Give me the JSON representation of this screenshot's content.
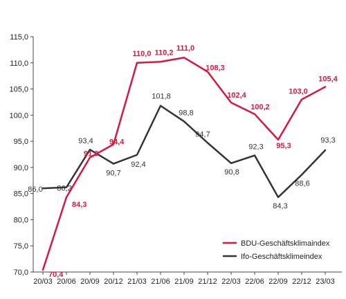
{
  "chart_data": {
    "type": "line",
    "title": "",
    "xlabel": "",
    "ylabel": "",
    "categories": [
      "20/03",
      "20/06",
      "20/09",
      "20/12",
      "21/03",
      "21/06",
      "21/09",
      "21/12",
      "22/03",
      "22/06",
      "22/09",
      "22/12",
      "23/03"
    ],
    "ylim": [
      70,
      115
    ],
    "yticks": [
      "70,0",
      "75,0",
      "80,0",
      "85,0",
      "90,0",
      "95,0",
      "100,0",
      "105,0",
      "110,0",
      "115,0"
    ],
    "grid": false,
    "legend_position": "bottom-right",
    "series": [
      {
        "name": "BDU-Geschäftsklimaindex",
        "color": "#d6173f",
        "values": [
          70.4,
          84.3,
          91.9,
          94.4,
          110.0,
          110.2,
          111.0,
          108.3,
          102.4,
          100.2,
          95.3,
          103.0,
          105.4
        ],
        "labels": [
          "70,4",
          "84,3",
          "91,9",
          "94,4",
          "110,0",
          "110,2",
          "111,0",
          "108,3",
          "102,4",
          "100,2",
          "95,3",
          "103,0",
          "105,4"
        ]
      },
      {
        "name": "Ifo-Geschäftsklimeindex",
        "color": "#333333",
        "values": [
          86.0,
          86.2,
          93.4,
          90.7,
          92.4,
          101.8,
          98.8,
          94.7,
          90.8,
          92.3,
          84.3,
          88.6,
          93.3
        ],
        "labels": [
          "86,0",
          "86,2",
          "93,4",
          "90,7",
          "92,4",
          "101,8",
          "98,8",
          "94,7",
          "90,8",
          "92,3",
          "84,3",
          "88,6",
          "93,3"
        ]
      }
    ]
  }
}
